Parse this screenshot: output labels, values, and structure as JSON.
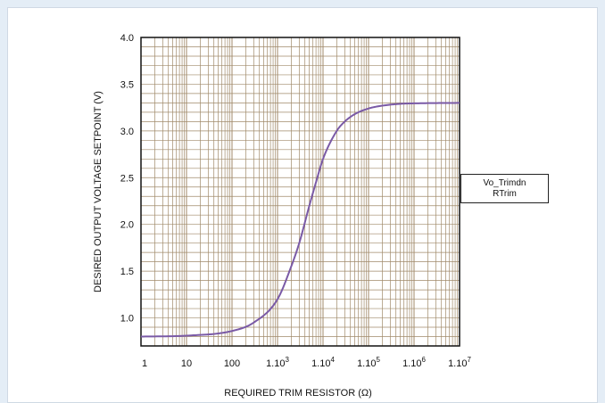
{
  "chart_data": {
    "type": "line",
    "xscale": "log",
    "xlim": [
      1,
      10000000
    ],
    "ylim": [
      0.7,
      4.0
    ],
    "xlabel": "REQUIRED TRIM RESISTOR (Ω)",
    "ylabel": "DESIRED OUTPUT VOLTAGE SETPOINT (V)",
    "grid": true,
    "y_ticks": [
      "4.0",
      "3.5",
      "3.0",
      "2.5",
      "2.0",
      "1.5",
      "1.0"
    ],
    "x_ticks": [
      {
        "base": "1",
        "exp": ""
      },
      {
        "base": "10",
        "exp": ""
      },
      {
        "base": "100",
        "exp": ""
      },
      {
        "base": "1.10",
        "exp": "3"
      },
      {
        "base": "1.10",
        "exp": "4"
      },
      {
        "base": "1.10",
        "exp": "5"
      },
      {
        "base": "1.10",
        "exp": "6"
      },
      {
        "base": "1.10",
        "exp": "7"
      }
    ],
    "legend": [
      "Vo_Trimdn",
      "RTrim"
    ],
    "legend_placement": "right",
    "series": [
      {
        "color": "#7a5aa6",
        "x": [
          1,
          10,
          100,
          300,
          1000,
          2000,
          3000,
          5000,
          7000,
          10000,
          20000,
          30000,
          50000,
          100000,
          200000,
          500000,
          1000000,
          10000000
        ],
        "y": [
          0.8,
          0.81,
          0.86,
          0.95,
          1.2,
          1.55,
          1.8,
          2.2,
          2.45,
          2.7,
          3.0,
          3.1,
          3.18,
          3.24,
          3.27,
          3.29,
          3.295,
          3.3
        ]
      }
    ],
    "colors": {
      "grid": "#a08a6a",
      "axis": "#111111",
      "curve": "#7a5aa6"
    }
  }
}
